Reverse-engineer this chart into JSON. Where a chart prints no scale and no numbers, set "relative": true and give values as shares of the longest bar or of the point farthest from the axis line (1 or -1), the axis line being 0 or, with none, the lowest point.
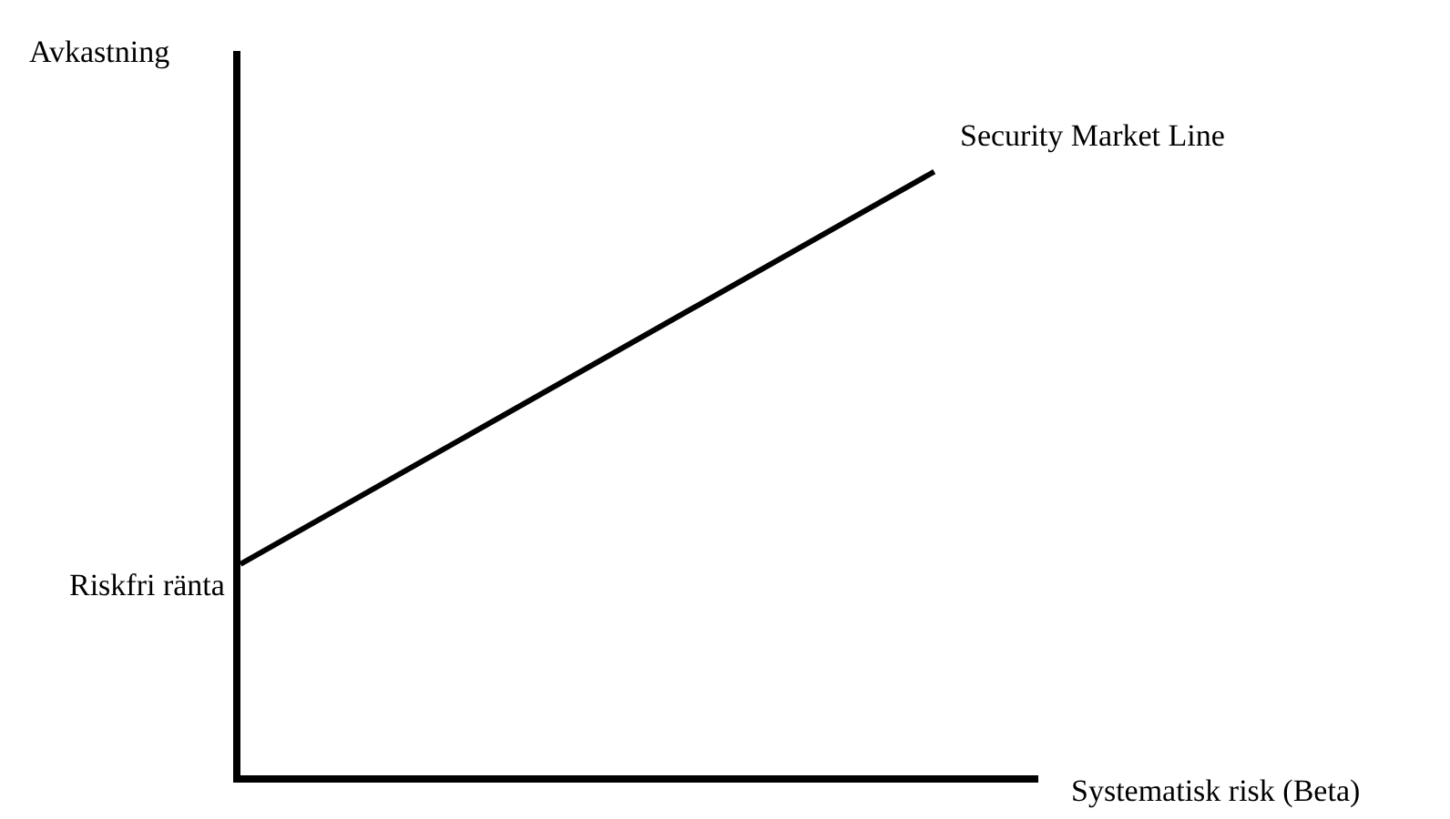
{
  "chart_data": {
    "type": "line",
    "relative": true,
    "categories": [
      null,
      null
    ],
    "series": [
      {
        "name": "Security Market Line",
        "color": "#000000",
        "values": [
          0.35,
          1
        ]
      }
    ],
    "xlabel": "Systematisk risk (Beta)",
    "ylabel": "Avkastning",
    "annotations": [
      "Riskfri ränta"
    ],
    "legend": false,
    "marker": "none",
    "line_style": "solid"
  }
}
